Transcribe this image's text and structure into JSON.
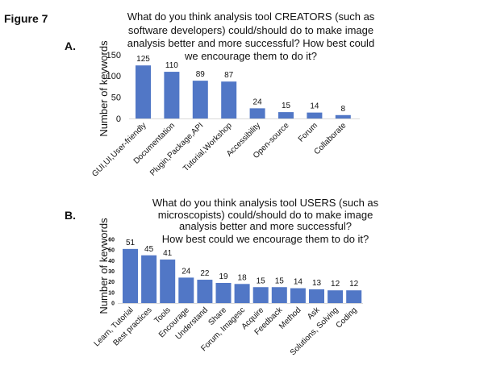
{
  "figure_label": "Figure 7",
  "bar_color": "#5177c6",
  "chart_data": [
    {
      "type": "bar",
      "panel": "A.",
      "title_lines": [
        "What do you think analysis tool CREATORS (such as",
        "software developers) could/should do to make image",
        "analysis better and more successful? How best could",
        "we encourage them to do it?"
      ],
      "xlabel": "",
      "ylabel": "Number of keywords",
      "ylim": [
        0,
        150
      ],
      "yticks": [
        0,
        50,
        100,
        150
      ],
      "categories": [
        "GUI,UI,User-friendly",
        "Documentation",
        "Plugin,Package,API",
        "Tutorial,Workshop",
        "Accessibility",
        "Open-source",
        "Forum",
        "Collaborate"
      ],
      "values": [
        125,
        110,
        89,
        87,
        24,
        15,
        14,
        8
      ],
      "grid": false,
      "legend": "none"
    },
    {
      "type": "bar",
      "panel": "B.",
      "title_lines": [
        "What do you think analysis tool USERS (such as",
        "microscopists) could/should do to make image",
        "analysis better and more successful?",
        "How best could we encourage them to do it?"
      ],
      "xlabel": "",
      "ylabel": "Number of keywords",
      "ylim": [
        0,
        60
      ],
      "yticks": [
        0,
        10,
        20,
        30,
        40,
        50,
        60
      ],
      "categories": [
        "Learn, Tutorial",
        "Best practices",
        "Tools",
        "Encourage",
        "Understand",
        "Share",
        "Forum, Imagesc",
        "Acquire",
        "Feedback",
        "Method",
        "Ask",
        "Solutions, Solving",
        "Coding"
      ],
      "values": [
        51,
        45,
        41,
        24,
        22,
        19,
        18,
        15,
        15,
        14,
        13,
        12,
        12
      ],
      "grid": false,
      "legend": "none"
    }
  ]
}
